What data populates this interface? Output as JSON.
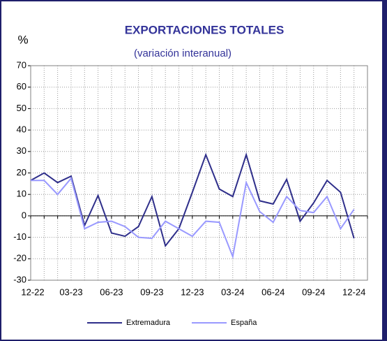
{
  "chart_data": {
    "type": "line",
    "title": "EXPORTACIONES TOTALES",
    "subtitle": "(variación interanual)",
    "y_label": "%",
    "categories": [
      "12-22",
      null,
      null,
      "03-23",
      null,
      null,
      "06-23",
      null,
      null,
      "09-23",
      null,
      null,
      "12-23",
      null,
      null,
      "03-24",
      null,
      null,
      "06-24",
      null,
      null,
      "09-24",
      null,
      null,
      "12-24"
    ],
    "series": [
      {
        "name": "Extremadura",
        "color": "#2e2e8a",
        "values": [
          16.5,
          20,
          15.5,
          18.5,
          -4.5,
          9.5,
          -8,
          -9.5,
          -5,
          9,
          -14,
          -6,
          11,
          28.5,
          12.5,
          9,
          28.5,
          7,
          5.5,
          17,
          -2.5,
          6,
          16.5,
          11,
          -10.5
        ]
      },
      {
        "name": "España",
        "color": "#9999ff",
        "values": [
          16.5,
          16.5,
          10,
          17.5,
          -6,
          -3,
          -2.5,
          -5,
          -10,
          -10.5,
          -2.5,
          -6,
          -9.5,
          -2.5,
          -3,
          -19,
          15.5,
          2,
          -3,
          9,
          2.5,
          1.5,
          9,
          -6,
          3
        ]
      }
    ],
    "ylim": [
      -30,
      70
    ],
    "yticks": [
      -30,
      -20,
      -10,
      0,
      10,
      20,
      30,
      40,
      50,
      60,
      70
    ],
    "grid": true,
    "legend": "bottom"
  }
}
